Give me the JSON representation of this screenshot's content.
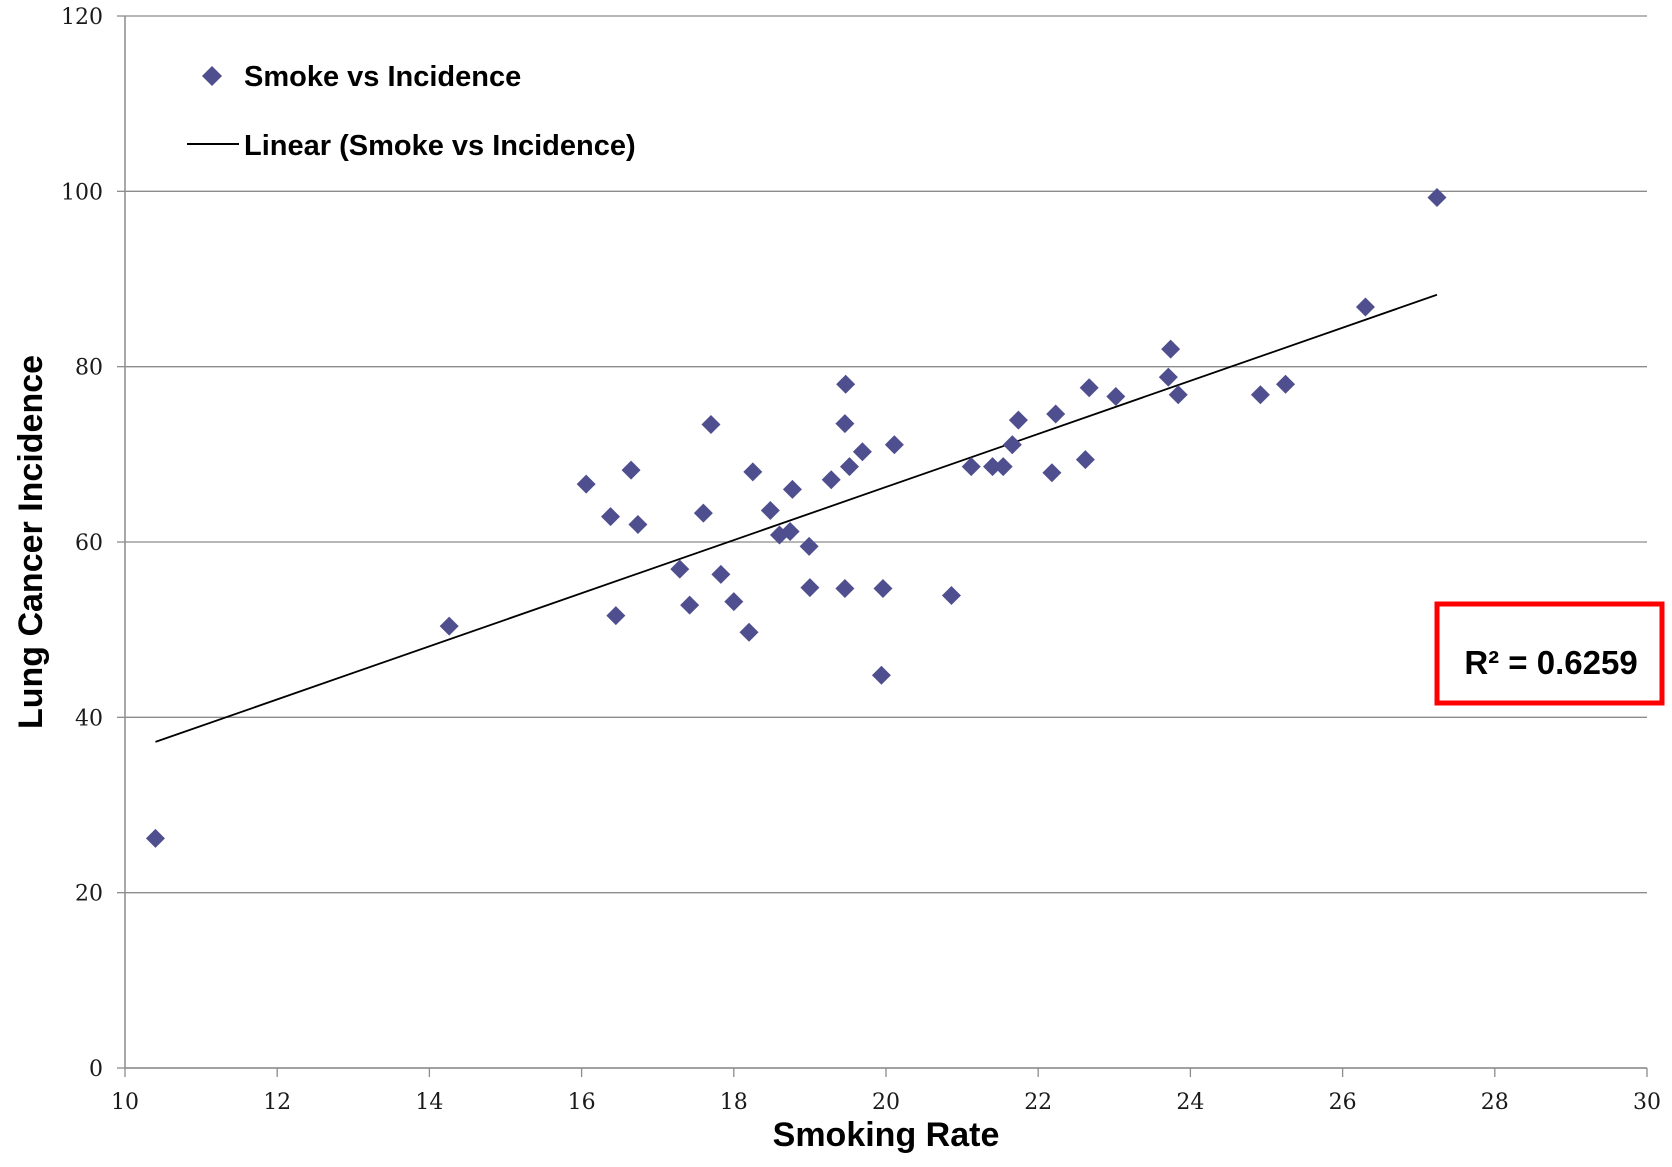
{
  "chart_data": {
    "type": "scatter",
    "title": "",
    "xlabel": "Smoking Rate",
    "ylabel": "Lung Cancer Incidence",
    "xlim": [
      10,
      30
    ],
    "ylim": [
      0,
      120
    ],
    "xticks": [
      "10",
      "12",
      "14",
      "16",
      "18",
      "20",
      "22",
      "24",
      "26",
      "28",
      "30"
    ],
    "yticks": [
      "0",
      "20",
      "40",
      "60",
      "80",
      "100",
      "120"
    ],
    "grid": "horizontal",
    "legend_position": "top-left",
    "legend": [
      "Smoke vs Incidence",
      "Linear (Smoke vs Incidence)"
    ],
    "series": [
      {
        "name": "Smoke vs Incidence",
        "marker": "diamond",
        "color": "#4f4f8f",
        "x": [
          10.4,
          14.26,
          16.06,
          16.38,
          16.45,
          16.65,
          16.74,
          17.29,
          17.42,
          17.6,
          17.7,
          17.83,
          18.0,
          18.2,
          18.25,
          18.48,
          18.6,
          18.74,
          18.77,
          18.99,
          19.0,
          19.28,
          19.46,
          19.46,
          19.47,
          19.52,
          19.69,
          19.94,
          19.96,
          20.11,
          20.86,
          21.12,
          21.4,
          21.54,
          21.66,
          21.74,
          22.18,
          22.23,
          22.62,
          22.67,
          23.02,
          23.71,
          23.74,
          23.84,
          24.92,
          25.25,
          26.3,
          27.24
        ],
        "y": [
          26.2,
          50.4,
          66.6,
          62.9,
          51.6,
          68.2,
          62.0,
          56.9,
          52.8,
          63.3,
          73.4,
          56.3,
          53.2,
          49.7,
          68.0,
          63.6,
          60.8,
          61.2,
          66.0,
          59.5,
          54.8,
          67.1,
          54.7,
          73.5,
          78.0,
          68.6,
          70.3,
          44.8,
          54.7,
          71.1,
          53.9,
          68.6,
          68.6,
          68.6,
          71.1,
          73.9,
          67.9,
          74.6,
          69.4,
          77.6,
          76.6,
          78.8,
          82.0,
          76.8,
          76.8,
          78.0,
          86.8,
          99.3
        ]
      },
      {
        "name": "Linear (Smoke vs Incidence)",
        "type": "line",
        "color": "#000000",
        "x": [
          10.4,
          27.24
        ],
        "y": [
          37.2,
          88.2
        ]
      }
    ],
    "annotations": [
      {
        "text": "R² = 0.6259",
        "border_color": "#ff0000"
      }
    ]
  }
}
